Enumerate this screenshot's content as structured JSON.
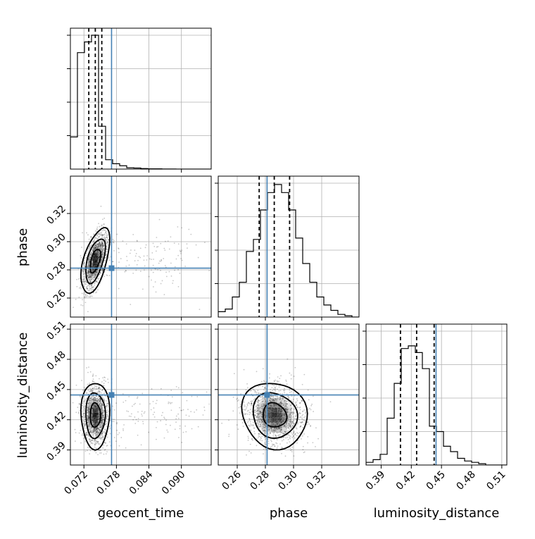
{
  "chart_data": {
    "type": "corner",
    "parameters": [
      "geocent_time",
      "phase",
      "luminosity_distance"
    ],
    "axis_labels": {
      "x": [
        "geocent_time",
        "phase",
        "luminosity_distance"
      ],
      "y_row1": "phase",
      "y_row2": "luminosity_distance"
    },
    "ranges": {
      "geocent_time": [
        0.0695,
        0.0955
      ],
      "phase": [
        0.2465,
        0.3465
      ],
      "luminosity_distance": [
        0.375,
        0.515
      ]
    },
    "ticks": {
      "geocent_time": [
        {
          "v": 0.072,
          "label": "0.072"
        },
        {
          "v": 0.078,
          "label": "0.078"
        },
        {
          "v": 0.084,
          "label": "0.084"
        },
        {
          "v": 0.09,
          "label": "0.090"
        }
      ],
      "phase": [
        {
          "v": 0.26,
          "label": "0.26"
        },
        {
          "v": 0.28,
          "label": "0.28"
        },
        {
          "v": 0.3,
          "label": "0.30"
        },
        {
          "v": 0.32,
          "label": "0.32"
        }
      ],
      "luminosity_distance": [
        {
          "v": 0.39,
          "label": "0.39"
        },
        {
          "v": 0.42,
          "label": "0.42"
        },
        {
          "v": 0.45,
          "label": "0.45"
        },
        {
          "v": 0.48,
          "label": "0.48"
        },
        {
          "v": 0.51,
          "label": "0.51"
        }
      ]
    },
    "truths": {
      "geocent_time": 0.0771,
      "phase": 0.2812,
      "luminosity_distance": 0.4446
    },
    "quantiles": {
      "geocent_time": [
        0.0729,
        0.0741,
        0.0753
      ],
      "phase": [
        0.2756,
        0.2863,
        0.2972
      ],
      "luminosity_distance": [
        0.4092,
        0.4253,
        0.4427
      ]
    },
    "histograms": {
      "geocent_time": {
        "bin_edges": [
          0.0695,
          0.0708,
          0.0721,
          0.0734,
          0.0747,
          0.076,
          0.0773,
          0.0786,
          0.0799,
          0.0812,
          0.0825,
          0.0838,
          0.0851,
          0.0864,
          0.0877,
          0.089,
          0.0903,
          0.0916,
          0.0929,
          0.0942,
          0.0955
        ],
        "counts": [
          0.24,
          0.87,
          0.95,
          1.0,
          0.32,
          0.07,
          0.04,
          0.025,
          0.01,
          0.008,
          0.004,
          0.002,
          0.002,
          0.001,
          0.001,
          0,
          0,
          0,
          0,
          0
        ]
      },
      "phase": {
        "bin_edges": [
          0.2465,
          0.2515,
          0.2565,
          0.2615,
          0.2665,
          0.2715,
          0.2765,
          0.2815,
          0.2865,
          0.2915,
          0.2965,
          0.3015,
          0.3065,
          0.3115,
          0.3165,
          0.3215,
          0.3265,
          0.3315,
          0.3365,
          0.3415,
          0.3465
        ],
        "counts": [
          0.04,
          0.06,
          0.15,
          0.26,
          0.49,
          0.58,
          0.8,
          0.93,
          0.99,
          0.93,
          0.8,
          0.59,
          0.4,
          0.26,
          0.15,
          0.09,
          0.05,
          0.02,
          0.01,
          0.0
        ]
      },
      "luminosity_distance": {
        "bin_edges": [
          0.375,
          0.382,
          0.389,
          0.396,
          0.403,
          0.41,
          0.417,
          0.424,
          0.431,
          0.438,
          0.445,
          0.452,
          0.459,
          0.466,
          0.473,
          0.48,
          0.487,
          0.494,
          0.501,
          0.508,
          0.515
        ],
        "counts": [
          0.02,
          0.04,
          0.08,
          0.35,
          0.61,
          0.87,
          0.89,
          0.84,
          0.72,
          0.29,
          0.25,
          0.14,
          0.1,
          0.05,
          0.03,
          0.02,
          0.01,
          0.0,
          0.0,
          0.0
        ]
      }
    },
    "scatter_style": {
      "color": "#000000",
      "truth_color": "#4682b4",
      "grid_color": "#b0b0b0",
      "density_color": "#000000"
    },
    "joint": {
      "geocent_time_vs_phase": {
        "center": [
          0.0741,
          0.2865
        ],
        "spread": [
          0.0012,
          0.0105
        ],
        "correlation": 0.55
      },
      "geocent_time_vs_luminosity_distance": {
        "center": [
          0.0741,
          0.4245
        ],
        "spread": [
          0.0012,
          0.015
        ],
        "correlation": 0.0
      },
      "phase_vs_luminosity_distance": {
        "center": [
          0.2865,
          0.4245
        ],
        "spread": [
          0.0105,
          0.015
        ],
        "correlation": -0.1
      }
    }
  }
}
